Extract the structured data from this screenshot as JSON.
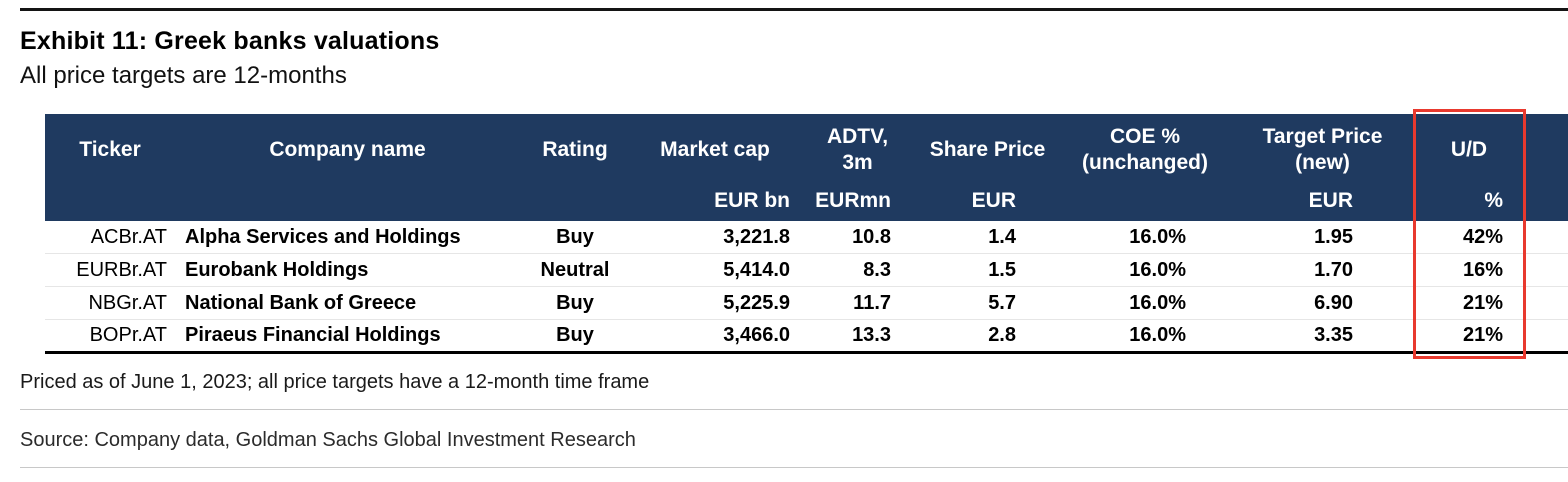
{
  "exhibit": {
    "title": "Exhibit 11: Greek banks valuations",
    "subtitle": "All price targets are 12-months"
  },
  "table": {
    "columns": [
      {
        "label": "Ticker",
        "unit": ""
      },
      {
        "label": "Company name",
        "unit": ""
      },
      {
        "label": "Rating",
        "unit": ""
      },
      {
        "label": "Market cap",
        "unit": "EUR bn"
      },
      {
        "label": "ADTV,\n3m",
        "unit": "EURmn"
      },
      {
        "label": "Share Price",
        "unit": "EUR"
      },
      {
        "label": "COE %\n(unchanged)",
        "unit": ""
      },
      {
        "label": "Target Price\n(new)",
        "unit": "EUR"
      },
      {
        "label": "U/D",
        "unit": "%"
      }
    ],
    "rows": [
      [
        "ACBr.AT",
        "Alpha Services and Holdings",
        "Buy",
        "3,221.8",
        "10.8",
        "1.4",
        "16.0%",
        "1.95",
        "42%"
      ],
      [
        "EURBr.AT",
        "Eurobank Holdings",
        "Neutral",
        "5,414.0",
        "8.3",
        "1.5",
        "16.0%",
        "1.70",
        "16%"
      ],
      [
        "NBGr.AT",
        "National Bank of Greece",
        "Buy",
        "5,225.9",
        "11.7",
        "5.7",
        "16.0%",
        "6.90",
        "21%"
      ],
      [
        "BOPr.AT",
        "Piraeus Financial Holdings",
        "Buy",
        "3,466.0",
        "13.3",
        "2.8",
        "16.0%",
        "3.35",
        "21%"
      ]
    ]
  },
  "footnote": "Priced as of June 1, 2023; all price targets have a 12-month time frame",
  "source": "Source: Company data, Goldman Sachs Global Investment Research",
  "colors": {
    "header_bg": "#1f3a60",
    "highlight_border": "#e8392e"
  },
  "highlight": {
    "column": "U/D %"
  }
}
